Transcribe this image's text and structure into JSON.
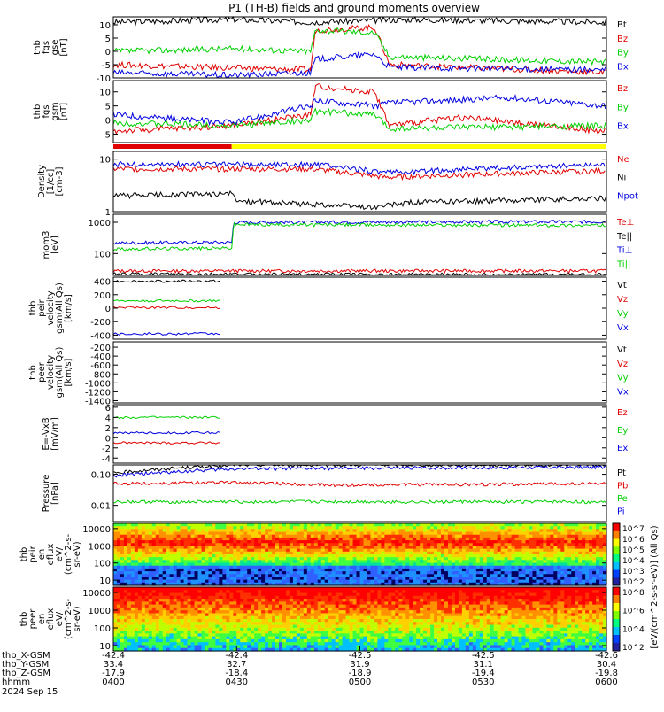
{
  "title": "P1 (TH-B) fields and ground moments overview",
  "colors": {
    "black": "#000000",
    "red": "#e00000",
    "green": "#00d000",
    "blue": "#0000e0",
    "yellow": "#ffff00"
  },
  "chart_data": [
    {
      "type": "line",
      "id": "fgs_dsl",
      "ylabel": [
        "thb",
        "fgs",
        "gse",
        "[nT]"
      ],
      "ylim": [
        -10,
        13
      ],
      "ticks": [
        "10",
        "5",
        "0",
        "-5",
        "-10"
      ],
      "tick_vals": [
        10,
        5,
        0,
        -5,
        -10
      ],
      "series": [
        {
          "name": "Bt",
          "color": "black",
          "segments": [
            [
              0,
              1,
              11
            ],
            [
              0.24,
              1,
              12
            ],
            [
              0.4,
              1,
              11
            ],
            [
              0.6,
              1,
              12
            ],
            [
              1,
              1,
              11
            ]
          ]
        },
        {
          "name": "Bz",
          "color": "red",
          "segments": [
            [
              0,
              1,
              -5
            ],
            [
              0.4,
              1,
              -7
            ],
            [
              0.41,
              1,
              8
            ],
            [
              0.53,
              1,
              9
            ],
            [
              0.56,
              1,
              -5
            ],
            [
              1,
              1,
              -8
            ]
          ]
        },
        {
          "name": "By",
          "color": "green",
          "segments": [
            [
              0,
              1,
              0
            ],
            [
              0.24,
              1,
              1
            ],
            [
              0.4,
              1,
              0
            ],
            [
              0.41,
              1,
              8
            ],
            [
              0.53,
              1,
              7
            ],
            [
              0.56,
              1,
              -2
            ],
            [
              1,
              1,
              -4
            ]
          ]
        },
        {
          "name": "Bx",
          "color": "blue",
          "segments": [
            [
              0,
              1,
              -8
            ],
            [
              0.24,
              1,
              -9
            ],
            [
              0.4,
              1,
              -8
            ],
            [
              0.41,
              1,
              -3
            ],
            [
              0.53,
              1,
              -1
            ],
            [
              0.56,
              1,
              -6
            ],
            [
              1,
              1,
              -7
            ]
          ]
        }
      ]
    },
    {
      "type": "line",
      "id": "fgs_gsm",
      "ylabel": [
        "thb",
        "fgs",
        "gsm",
        "[nT]"
      ],
      "ylim": [
        -8,
        14
      ],
      "ticks": [
        "10",
        "5",
        "0",
        "-5"
      ],
      "tick_vals": [
        10,
        5,
        0,
        -5
      ],
      "series": [
        {
          "name": "Bz",
          "color": "red",
          "segments": [
            [
              0,
              1,
              -4
            ],
            [
              0.24,
              1,
              -2
            ],
            [
              0.4,
              1,
              2
            ],
            [
              0.41,
              1,
              12
            ],
            [
              0.53,
              1,
              10
            ],
            [
              0.56,
              1,
              -2
            ],
            [
              0.7,
              1,
              1
            ],
            [
              1,
              1,
              -4
            ]
          ]
        },
        {
          "name": "By",
          "color": "green",
          "segments": [
            [
              0,
              1,
              -1
            ],
            [
              0.24,
              1,
              -2
            ],
            [
              0.4,
              1,
              0
            ],
            [
              0.41,
              1,
              3
            ],
            [
              0.53,
              1,
              2
            ],
            [
              0.56,
              1,
              -3
            ],
            [
              1,
              1,
              -2
            ]
          ]
        },
        {
          "name": "Bx",
          "color": "blue",
          "segments": [
            [
              0,
              1,
              2
            ],
            [
              0.24,
              1,
              -1
            ],
            [
              0.4,
              1,
              5
            ],
            [
              0.41,
              1,
              7
            ],
            [
              0.53,
              1,
              5
            ],
            [
              0.56,
              1,
              6
            ],
            [
              0.8,
              1,
              8
            ],
            [
              1,
              1,
              5
            ]
          ]
        }
      ]
    },
    {
      "type": "line",
      "id": "density",
      "ylabel": [
        "Density",
        "[1/cc]",
        "[cm-3]"
      ],
      "log": true,
      "ylim": [
        1,
        14
      ],
      "ticks": [
        "10",
        "1"
      ],
      "tick_vals": [
        10,
        1
      ],
      "series": [
        {
          "name": "Ne",
          "color": "red",
          "segments": [
            [
              0,
              1,
              6.5
            ],
            [
              0.4,
              1,
              6.5
            ],
            [
              0.55,
              1,
              4.5
            ],
            [
              1,
              1,
              6
            ]
          ]
        },
        {
          "name": "Ni",
          "color": "black",
          "segments": [
            [
              0,
              1,
              2
            ],
            [
              0.24,
              1,
              2.2
            ],
            [
              0.25,
              1,
              1.6
            ],
            [
              0.53,
              1,
              1.2
            ],
            [
              0.6,
              1,
              1.5
            ],
            [
              1,
              1,
              1.8
            ]
          ]
        },
        {
          "name": "Npot",
          "color": "blue",
          "segments": [
            [
              0,
              1,
              8
            ],
            [
              0.4,
              1,
              8
            ],
            [
              0.55,
              1,
              5.5
            ],
            [
              1,
              1,
              8
            ]
          ]
        }
      ]
    },
    {
      "type": "line",
      "id": "temperature",
      "ylabel": [
        "mom3",
        "[eV]"
      ],
      "log": true,
      "ylim": [
        20,
        1800
      ],
      "ticks": [
        "1000",
        "100"
      ],
      "tick_vals": [
        1000,
        100
      ],
      "series": [
        {
          "name": "Te⊥",
          "color": "red",
          "segments": [
            [
              0,
              1,
              28
            ],
            [
              1,
              1,
              28
            ]
          ]
        },
        {
          "name": "Te||",
          "color": "black",
          "segments": [
            [
              0,
              1,
              22
            ],
            [
              1,
              1,
              21
            ]
          ]
        },
        {
          "name": "Ti⊥",
          "color": "blue",
          "segments": [
            [
              0,
              1,
              220
            ],
            [
              0.24,
              1,
              230
            ],
            [
              0.245,
              1,
              1000
            ],
            [
              1,
              1,
              1050
            ]
          ]
        },
        {
          "name": "Ti||",
          "color": "green",
          "segments": [
            [
              0,
              1,
              140
            ],
            [
              0.24,
              1,
              150
            ],
            [
              0.245,
              1,
              850
            ],
            [
              1,
              1,
              800
            ]
          ]
        }
      ]
    },
    {
      "type": "line",
      "id": "peir_velocity",
      "ylabel": [
        "thb",
        "peir",
        "velocity",
        "gsm(All Qs)",
        "[km/s]"
      ],
      "ylim": [
        -460,
        460
      ],
      "ticks": [
        "400",
        "200",
        "0",
        "-200",
        "-400"
      ],
      "tick_vals": [
        400,
        200,
        0,
        -200,
        -400
      ],
      "series": [
        {
          "name": "Vt",
          "color": "black",
          "segments": [
            [
              0,
              0.22,
              400
            ]
          ]
        },
        {
          "name": "Vz",
          "color": "red",
          "segments": [
            [
              0,
              0.22,
              10
            ]
          ]
        },
        {
          "name": "Vy",
          "color": "green",
          "segments": [
            [
              0,
              0.22,
              110
            ]
          ]
        },
        {
          "name": "Vx",
          "color": "blue",
          "segments": [
            [
              0,
              0.22,
              -380
            ]
          ]
        }
      ]
    },
    {
      "type": "line",
      "id": "peer_velocity",
      "ylabel": [
        "thb",
        "peer",
        "velocity",
        "gsm(All Qs)",
        "[km/s]"
      ],
      "ylim": [
        -1450,
        -80
      ],
      "ticks": [
        "-200",
        "-400",
        "-600",
        "-800",
        "-1000",
        "-1200",
        "-1400"
      ],
      "tick_vals": [
        -200,
        -400,
        -600,
        -800,
        -1000,
        -1200,
        -1400
      ],
      "series": [
        {
          "name": "Vt",
          "color": "black",
          "segments": []
        },
        {
          "name": "Vz",
          "color": "red",
          "segments": []
        },
        {
          "name": "Vy",
          "color": "green",
          "segments": []
        },
        {
          "name": "Vx",
          "color": "blue",
          "segments": []
        }
      ]
    },
    {
      "type": "line",
      "id": "efield",
      "ylabel": [
        "E=-VxB",
        "[mV/m]"
      ],
      "ylim": [
        -5,
        6.5
      ],
      "ticks": [
        "6",
        "4",
        "2",
        "0",
        "-2",
        "-4"
      ],
      "tick_vals": [
        6,
        4,
        2,
        0,
        -2,
        -4
      ],
      "series": [
        {
          "name": "Ez",
          "color": "red",
          "segments": [
            [
              0,
              0.22,
              -1
            ]
          ]
        },
        {
          "name": "Ey",
          "color": "green",
          "segments": [
            [
              0,
              0.22,
              4
            ]
          ]
        },
        {
          "name": "Ex",
          "color": "blue",
          "segments": [
            [
              0,
              0.22,
              1
            ]
          ]
        }
      ]
    },
    {
      "type": "line",
      "id": "pressure",
      "ylabel": [
        "Pressure",
        "[nPa]"
      ],
      "log": true,
      "ylim": [
        0.003,
        0.2
      ],
      "ticks": [
        "0.10",
        "0.01"
      ],
      "tick_vals": [
        0.1,
        0.01
      ],
      "series": [
        {
          "name": "Pt",
          "color": "black",
          "segments": [
            [
              0,
              0.24,
              0.11
            ],
            [
              0.245,
              1,
              0.2
            ],
            [
              1,
              1,
              0.2
            ]
          ]
        },
        {
          "name": "Pb",
          "color": "red",
          "segments": [
            [
              0,
              0.24,
              0.05
            ],
            [
              0.245,
              1,
              0.055
            ],
            [
              0.44,
              0.52,
              0.045
            ],
            [
              1,
              1,
              0.05
            ]
          ]
        },
        {
          "name": "Pe",
          "color": "green",
          "segments": [
            [
              0,
              1,
              0.013
            ],
            [
              1,
              1,
              0.013
            ]
          ]
        },
        {
          "name": "Pi",
          "color": "blue",
          "segments": [
            [
              0,
              0.24,
              0.09
            ],
            [
              0.245,
              1,
              0.15
            ],
            [
              1,
              1,
              0.17
            ]
          ]
        }
      ]
    },
    {
      "type": "heatmap",
      "id": "peir_eflux",
      "ylabel": [
        "thb",
        "peir",
        "en",
        "eflux",
        "eV/",
        "(cm^2-s-",
        "sr-eV)"
      ],
      "log": true,
      "ylim": [
        5,
        20000
      ],
      "ticks": [
        "10000",
        "1000",
        "100",
        "10"
      ],
      "tick_vals": [
        10000,
        1000,
        100,
        10
      ]
    },
    {
      "type": "heatmap",
      "id": "peer_eflux",
      "ylabel": [
        "thb",
        "peer",
        "en",
        "eflux",
        "eV/",
        "(cm^2-s-",
        "sr-eV)"
      ],
      "log": true,
      "ylim": [
        5,
        20000
      ],
      "ticks": [
        "10000",
        "1000",
        "100",
        "10"
      ],
      "tick_vals": [
        10000,
        1000,
        100,
        10
      ]
    }
  ],
  "colorbar": {
    "label": "[eV/(cm^2-s-sr-eV)] (All Qs)",
    "upper_ticks": [
      "10^7",
      "10^6",
      "10^5",
      "10^4",
      "10^3",
      "10^2"
    ],
    "lower_ticks": [
      "10^8",
      "10^6",
      "10^4",
      "10^2"
    ]
  },
  "x_axis": {
    "rows": [
      {
        "label": "thb_X-GSM",
        "values": [
          "-42.4",
          "-42.4",
          "-42.5",
          "-42.5",
          "-42.6"
        ]
      },
      {
        "label": "thb_Y-GSM",
        "values": [
          "33.4",
          "32.7",
          "31.9",
          "31.1",
          "30.4"
        ]
      },
      {
        "label": "thb_Z-GSM",
        "values": [
          "-17.9",
          "-18.4",
          "-18.9",
          "-19.4",
          "-19.8"
        ]
      },
      {
        "label": "hhmm",
        "values": [
          "0400",
          "0430",
          "0500",
          "0530",
          "0600"
        ]
      }
    ],
    "date": "2024 Sep 15"
  },
  "mode_bar": {
    "red_fraction": 0.24
  }
}
